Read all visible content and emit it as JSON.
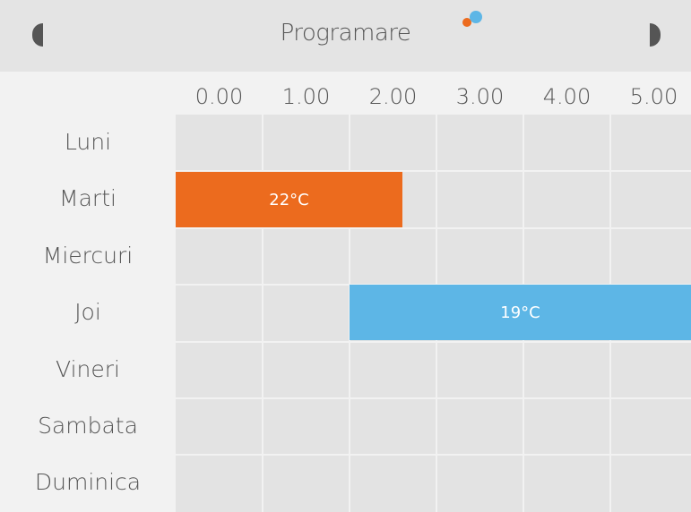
{
  "header": {
    "title": "Programare"
  },
  "times": [
    "0.00",
    "1.00",
    "2.00",
    "3.00",
    "4.00",
    "5.00"
  ],
  "days": [
    "Luni",
    "Marti",
    "Miercuri",
    "Joi",
    "Vineri",
    "Sambata",
    "Duminica"
  ],
  "blocks": [
    {
      "label": "22°C"
    },
    {
      "label": "19°C"
    }
  ]
}
